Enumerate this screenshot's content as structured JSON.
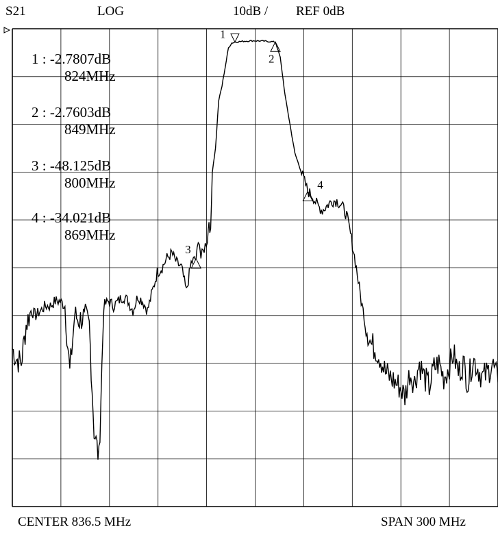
{
  "header": {
    "parameter": "S21",
    "format": "LOG",
    "scale": "10dB /",
    "reference": "REF 0dB"
  },
  "footer": {
    "center": "CENTER 836.5 MHz",
    "span": "SPAN 300 MHz"
  },
  "markers": [
    {
      "id": "1",
      "readout": "1 : -2.7807dB",
      "freq_text": "824MHz",
      "freq_mhz": 824,
      "value_db": -2.7807
    },
    {
      "id": "2",
      "readout": "2 : -2.7603dB",
      "freq_text": "849MHz",
      "freq_mhz": 849,
      "value_db": -2.7603
    },
    {
      "id": "3",
      "readout": "3 : -48.125dB",
      "freq_text": "800MHz",
      "freq_mhz": 800,
      "value_db": -48.125
    },
    {
      "id": "4",
      "readout": "4 : -34.021dB",
      "freq_text": "869MHz",
      "freq_mhz": 869,
      "value_db": -34.021
    }
  ],
  "chart_data": {
    "type": "line",
    "title": "",
    "xlabel": "",
    "ylabel": "",
    "xlim": [
      686.5,
      986.5
    ],
    "ylim": [
      -100,
      0
    ],
    "x_divisions": 10,
    "y_divisions": 10,
    "grid": true,
    "trace_color": "#000000",
    "series": [
      {
        "x": [
          686.5,
          689,
          692,
          695,
          698,
          701,
          704,
          707,
          710,
          713,
          716,
          719,
          722,
          725,
          728,
          731,
          734,
          737,
          740,
          743,
          746,
          749,
          752,
          755,
          758,
          761,
          764,
          767,
          770,
          773,
          776,
          779,
          782,
          785,
          788,
          791,
          794,
          797,
          800,
          802,
          803,
          805,
          807,
          808,
          809,
          810,
          812,
          814,
          816,
          818,
          820,
          822,
          824,
          830,
          836,
          842,
          849,
          852,
          855,
          858,
          861,
          864,
          867,
          869,
          872,
          875,
          878,
          881,
          884,
          887,
          890,
          893,
          896,
          899,
          902,
          905,
          908,
          911,
          914,
          917,
          920,
          923,
          926,
          929,
          932,
          935,
          938,
          941,
          944,
          947,
          950,
          953,
          956,
          959,
          962,
          965,
          968,
          971,
          974,
          977,
          980,
          983,
          986.5
        ],
        "y": [
          -67,
          -69,
          -70,
          -62,
          -59,
          -60,
          -59,
          -58,
          -58,
          -57,
          -57,
          -58,
          -72,
          -60,
          -61,
          -60,
          -62,
          -84,
          -90,
          -58,
          -57,
          -58,
          -57,
          -56,
          -57,
          -59,
          -56,
          -57,
          -59,
          -55,
          -51,
          -50,
          -48,
          -47,
          -49,
          -50,
          -55,
          -49,
          -48,
          -44,
          -48,
          -46,
          -44,
          -40,
          -43,
          -30,
          -25,
          -15,
          -12,
          -8,
          -4,
          -3,
          -2.78,
          -2.6,
          -2.5,
          -2.6,
          -2.76,
          -6,
          -14,
          -20,
          -26,
          -29,
          -32,
          -34.02,
          -35,
          -37,
          -38,
          -37,
          -36,
          -36,
          -37,
          -39,
          -44,
          -50,
          -57,
          -62,
          -66,
          -67,
          -69,
          -72,
          -73,
          -74,
          -75,
          -77,
          -72,
          -74,
          -70,
          -73,
          -75,
          -71,
          -70,
          -73,
          -71,
          -68,
          -72,
          -70,
          -74,
          -69,
          -71,
          -73,
          -72,
          -70,
          -74
        ]
      }
    ]
  }
}
